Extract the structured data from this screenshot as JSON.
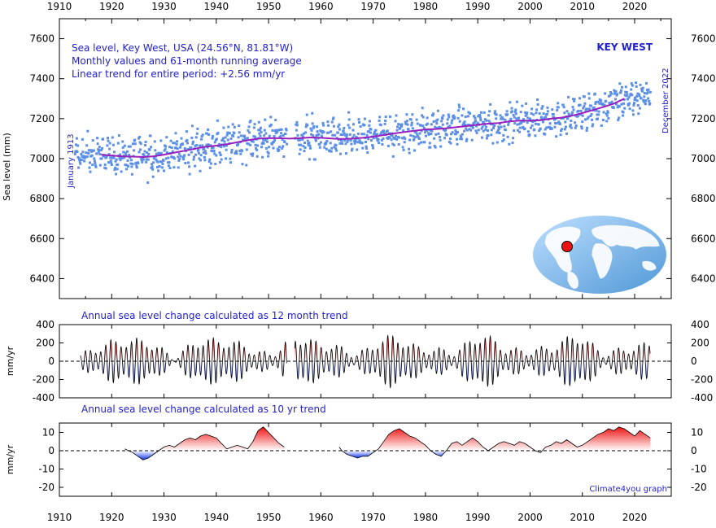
{
  "chart_data": [
    {
      "type": "scatter",
      "title": "Sea level, Key West, USA (24.56°N, 81.81°W)",
      "subtitle": "Monthly values and 61-month running average",
      "note": "Linear trend for entire period: +2.56 mm/yr",
      "station_label": "KEY WEST",
      "start_label": "January 1913",
      "end_label": "December 2022",
      "ylabel": "Sea level (mm)",
      "xlim": [
        1910,
        2027
      ],
      "ylim": [
        6300,
        7700
      ],
      "x_ticks": [
        1910,
        1920,
        1930,
        1940,
        1950,
        1960,
        1970,
        1980,
        1990,
        2000,
        2010,
        2020
      ],
      "y_ticks": [
        6400,
        6600,
        6800,
        7000,
        7200,
        7400,
        7600
      ],
      "monthly_color": "#5b8fe8",
      "running_average": {
        "color": "#9b1fbf",
        "x": [
          1918,
          1920,
          1922,
          1924,
          1926,
          1928,
          1930,
          1932,
          1934,
          1936,
          1938,
          1940,
          1942,
          1944,
          1946,
          1948,
          1950,
          1952,
          1954,
          1956,
          1958,
          1960,
          1962,
          1964,
          1966,
          1968,
          1970,
          1972,
          1974,
          1976,
          1978,
          1980,
          1982,
          1984,
          1986,
          1988,
          1990,
          1992,
          1994,
          1996,
          1998,
          2000,
          2002,
          2004,
          2006,
          2008,
          2010,
          2012,
          2014,
          2016,
          2018
        ],
        "y": [
          7020,
          7015,
          7012,
          7010,
          7008,
          7012,
          7020,
          7030,
          7040,
          7050,
          7060,
          7065,
          7072,
          7082,
          7092,
          7100,
          7103,
          7102,
          7100,
          7103,
          7106,
          7104,
          7101,
          7098,
          7100,
          7104,
          7110,
          7118,
          7126,
          7133,
          7140,
          7146,
          7148,
          7152,
          7158,
          7163,
          7170,
          7175,
          7178,
          7186,
          7190,
          7190,
          7192,
          7200,
          7205,
          7215,
          7228,
          7243,
          7258,
          7275,
          7300
        ]
      }
    },
    {
      "type": "area",
      "title": "Annual sea level change calculated as 12 month trend",
      "ylabel": "mm/yr",
      "ylim": [
        -400,
        400
      ],
      "y_ticks": [
        400,
        200,
        0,
        -200,
        -400
      ],
      "segments": [
        [
          1914,
          1953.5
        ],
        [
          1955,
          2023
        ]
      ]
    },
    {
      "type": "area",
      "title": "Annual sea level change calculated as 10 yr trend",
      "ylabel": "mm/yr",
      "ylim": [
        -25,
        15
      ],
      "y_ticks": [
        10,
        0,
        -10,
        -20
      ],
      "x": [
        1922.5,
        1924,
        1925,
        1926,
        1927,
        1928,
        1929,
        1930,
        1931,
        1932,
        1933,
        1934,
        1935,
        1936,
        1937,
        1938,
        1939,
        1940,
        1941,
        1942,
        1943,
        1944,
        1945,
        1946,
        1947,
        1948,
        1949,
        1950,
        1951,
        1952,
        1953,
        null,
        1963.5,
        1964,
        1965,
        1966,
        1967,
        1968,
        1969,
        1970,
        1971,
        1972,
        1973,
        1974,
        1975,
        1976,
        1977,
        1978,
        1979,
        1980,
        1981,
        1982,
        1983,
        1984,
        1985,
        1986,
        1987,
        1988,
        1989,
        1990,
        1991,
        1992,
        1993,
        1994,
        1995,
        1996,
        1997,
        1998,
        1999,
        2000,
        2001,
        2002,
        2003,
        2004,
        2005,
        2006,
        2007,
        2008,
        2009,
        2010,
        2011,
        2012,
        2013,
        2014,
        2015,
        2016,
        2017,
        2018,
        2019,
        2020,
        2021,
        2022,
        2023
      ],
      "y": [
        1,
        -1,
        -3,
        -5,
        -4,
        -2,
        0,
        2,
        3,
        2,
        4,
        6,
        7,
        6,
        8,
        9,
        8,
        7,
        4,
        1,
        2,
        3,
        2,
        1,
        5,
        11,
        13,
        10,
        7,
        4,
        2,
        null,
        2,
        0,
        -2,
        -3,
        -4,
        -3,
        -3,
        -1,
        1,
        5,
        9,
        11,
        12,
        10,
        8,
        7,
        5,
        3,
        0,
        -2,
        -3,
        0,
        4,
        5,
        3,
        5,
        7,
        5,
        2,
        0,
        2,
        4,
        5,
        4,
        3,
        5,
        4,
        2,
        0,
        -1,
        2,
        3,
        5,
        4,
        6,
        4,
        2,
        3,
        5,
        7,
        9,
        10,
        12,
        11,
        13,
        12,
        10,
        8,
        11,
        9,
        7
      ]
    }
  ],
  "credit": "Climate4you graph",
  "colors": {
    "positive": "#ee1111",
    "negative": "#1133ee",
    "text_blue": "#2222cc"
  }
}
